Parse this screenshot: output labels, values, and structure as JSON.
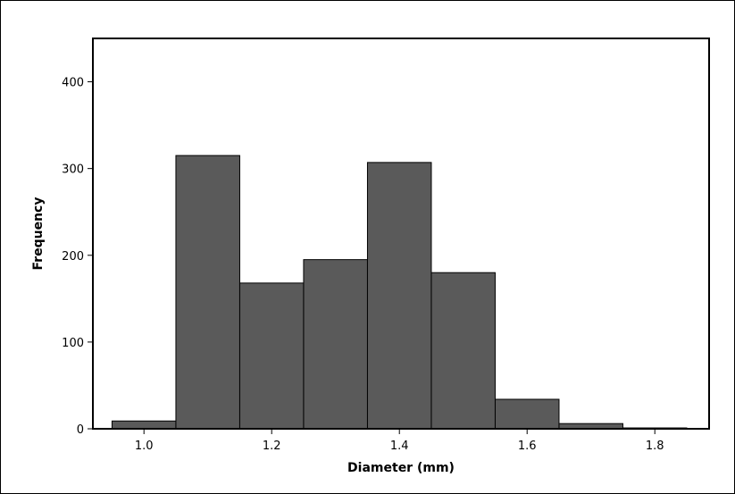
{
  "chart_data": {
    "type": "bar",
    "subtype": "histogram",
    "xlabel": "Diameter (mm)",
    "ylabel": "Frequency",
    "xlim": [
      0.92,
      1.885
    ],
    "ylim": [
      0,
      450
    ],
    "xticks": [
      1.0,
      1.2,
      1.4,
      1.6,
      1.8
    ],
    "xtick_labels": [
      "1.0",
      "1.2",
      "1.4",
      "1.6",
      "1.8"
    ],
    "yticks": [
      0,
      100,
      200,
      300,
      400
    ],
    "ytick_labels": [
      "0",
      "100",
      "200",
      "300",
      "400"
    ],
    "bins": [
      {
        "start": 0.95,
        "end": 1.05,
        "value": 9
      },
      {
        "start": 1.05,
        "end": 1.15,
        "value": 315
      },
      {
        "start": 1.15,
        "end": 1.25,
        "value": 168
      },
      {
        "start": 1.25,
        "end": 1.35,
        "value": 195
      },
      {
        "start": 1.35,
        "end": 1.45,
        "value": 307
      },
      {
        "start": 1.45,
        "end": 1.55,
        "value": 180
      },
      {
        "start": 1.55,
        "end": 1.65,
        "value": 34
      },
      {
        "start": 1.65,
        "end": 1.75,
        "value": 6
      },
      {
        "start": 1.75,
        "end": 1.85,
        "value": 1
      }
    ],
    "bar_color": "#5a5a5a",
    "edge_color": "#000000",
    "grid": false,
    "legend": "none"
  }
}
